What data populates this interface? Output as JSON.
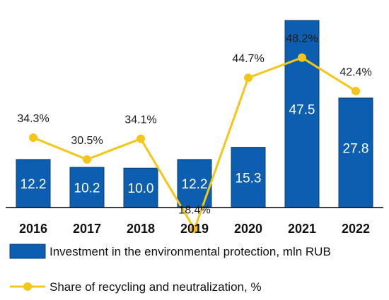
{
  "chart_data": {
    "type": "bar",
    "categories": [
      "2016",
      "2017",
      "2018",
      "2019",
      "2020",
      "2021",
      "2022"
    ],
    "series": [
      {
        "name": "Investment in the environmental protection, mln RUB",
        "type": "bar",
        "values": [
          12.2,
          10.2,
          10.0,
          12.2,
          15.3,
          47.5,
          27.8
        ],
        "value_labels": [
          "12.2",
          "10.2",
          "10.0",
          "12.2",
          "15.3",
          "47.5",
          "27.8"
        ],
        "color": "#0c5fb0"
      },
      {
        "name": "Share of recycling and neutralization, %",
        "type": "line",
        "values": [
          34.3,
          30.5,
          34.1,
          18.4,
          44.7,
          48.2,
          42.4
        ],
        "value_labels": [
          "34.3%",
          "30.5%",
          "34.1%",
          "18.4%",
          "44.7%",
          "48.2%",
          "42.4%"
        ],
        "color": "#f5c518"
      }
    ],
    "legend_position": "bottom",
    "grid": false
  }
}
